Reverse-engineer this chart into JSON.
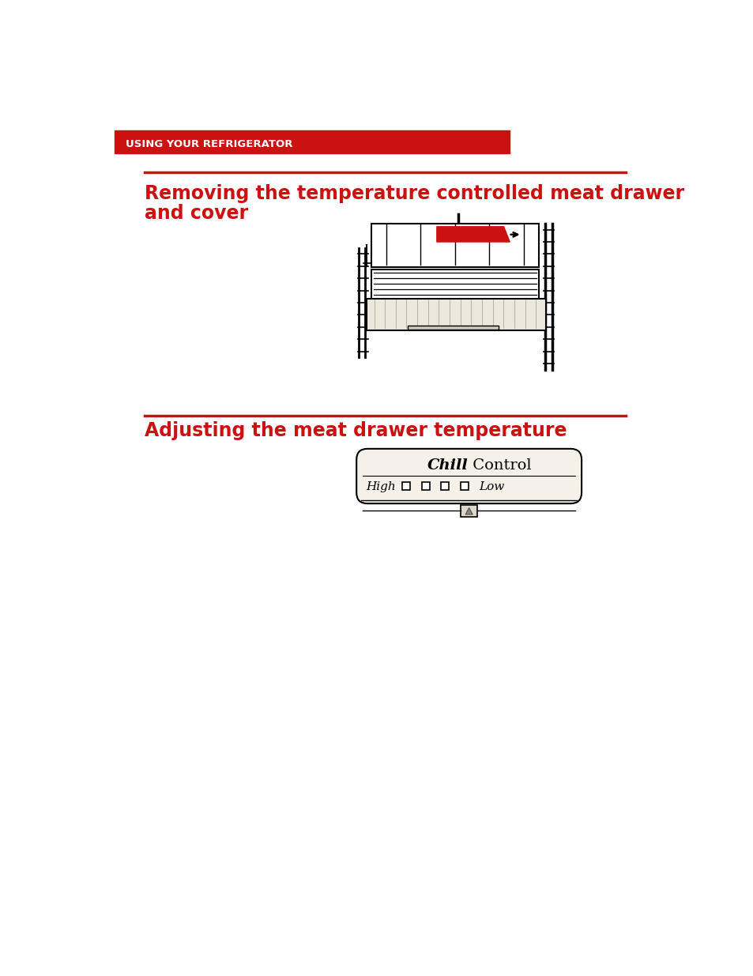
{
  "bg_color": "#ffffff",
  "header_bg": "#cc1111",
  "header_text": "USING YOUR REFRIGERATOR",
  "header_text_color": "#ffffff",
  "section1_line_color": "#cc1111",
  "section1_title_line1": "Removing the temperature controlled meat drawer",
  "section1_title_line2": "and cover",
  "section1_title_color": "#cc1111",
  "section2_line_color": "#cc1111",
  "section2_title": "Adjusting the meat drawer temperature",
  "section2_title_color": "#cc1111",
  "chill_label_italic": "Chill",
  "chill_label_normal": " Control",
  "chill_high": "High",
  "chill_low": "Low",
  "chill_bg": "#f5f0e8",
  "red_color": "#cc1111"
}
